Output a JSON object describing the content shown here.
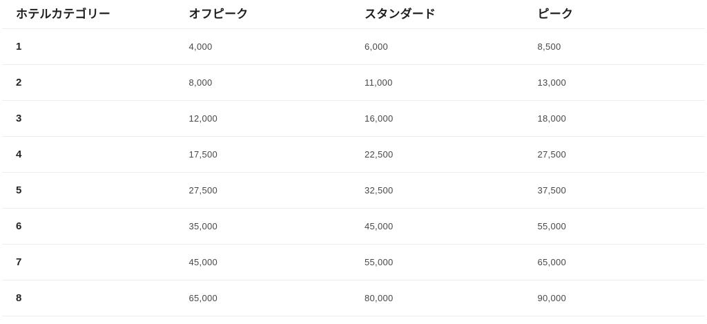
{
  "table": {
    "columns": [
      {
        "key": "category",
        "label": "ホテルカテゴリー"
      },
      {
        "key": "off_peak",
        "label": "オフピーク"
      },
      {
        "key": "standard",
        "label": "スタンダード"
      },
      {
        "key": "peak",
        "label": "ピーク"
      }
    ],
    "rows": [
      {
        "category": "1",
        "off_peak": "4,000",
        "standard": "6,000",
        "peak": "8,500"
      },
      {
        "category": "2",
        "off_peak": "8,000",
        "standard": "11,000",
        "peak": "13,000"
      },
      {
        "category": "3",
        "off_peak": "12,000",
        "standard": "16,000",
        "peak": "18,000"
      },
      {
        "category": "4",
        "off_peak": "17,500",
        "standard": "22,500",
        "peak": "27,500"
      },
      {
        "category": "5",
        "off_peak": "27,500",
        "standard": "32,500",
        "peak": "37,500"
      },
      {
        "category": "6",
        "off_peak": "35,000",
        "standard": "45,000",
        "peak": "55,000"
      },
      {
        "category": "7",
        "off_peak": "45,000",
        "standard": "55,000",
        "peak": "65,000"
      },
      {
        "category": "8",
        "off_peak": "65,000",
        "standard": "80,000",
        "peak": "90,000"
      }
    ]
  },
  "chart_data": {
    "type": "table",
    "title": "",
    "columns": [
      "ホテルカテゴリー",
      "オフピーク",
      "スタンダード",
      "ピーク"
    ],
    "rows": [
      [
        "1",
        4000,
        6000,
        8500
      ],
      [
        "2",
        8000,
        11000,
        13000
      ],
      [
        "3",
        12000,
        16000,
        18000
      ],
      [
        "4",
        17500,
        22500,
        27500
      ],
      [
        "5",
        27500,
        32500,
        37500
      ],
      [
        "6",
        35000,
        45000,
        55000
      ],
      [
        "7",
        45000,
        55000,
        65000
      ],
      [
        "8",
        65000,
        80000,
        90000
      ]
    ]
  },
  "colors": {
    "background": "#ffffff",
    "header_text": "#1d1e21",
    "category_text": "#232428",
    "value_text": "#46474c",
    "divider": "#ececec"
  }
}
